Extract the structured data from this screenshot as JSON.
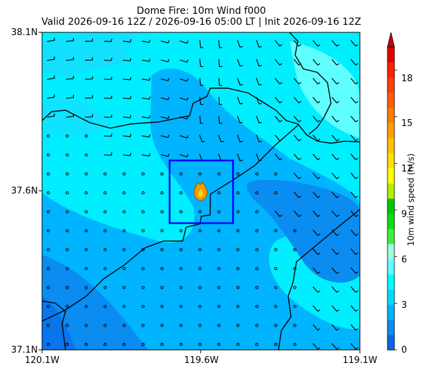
{
  "title": {
    "line1": "Dome Fire: 10m Wind f000",
    "line2": "Valid 2026-09-16 12Z / 2026-09-16 05:00 LT | Init 2026-09-16 12Z"
  },
  "axes": {
    "y_ticks": [
      "38.1N",
      "37.6N",
      "37.1N"
    ],
    "x_ticks": [
      "120.1W",
      "119.6W",
      "119.1W"
    ],
    "lat_range": [
      37.1,
      38.1
    ],
    "lon_range": [
      -120.1,
      -119.1
    ]
  },
  "fire": {
    "name": "Dome Fire",
    "icon": "fire-icon",
    "lat": 37.63,
    "lon": -119.59
  },
  "focus_box": {
    "lat_range": [
      37.5,
      37.7
    ],
    "lon_range": [
      -119.7,
      -119.5
    ],
    "color": "#0000ff"
  },
  "colorbar": {
    "label": "10m wind speed (m/s)",
    "ticks": [
      "0",
      "3",
      "6",
      "9",
      "12",
      "15",
      "18"
    ],
    "range": [
      0,
      19.5
    ],
    "extend": "max",
    "colors": [
      "#0a64e6",
      "#0a8cf0",
      "#00b4ff",
      "#00dcff",
      "#00ffff",
      "#60ffff",
      "#9effdc",
      "#40f040",
      "#10dc10",
      "#00c800",
      "#b0f000",
      "#ffff00",
      "#ffe000",
      "#ffc000",
      "#ffa000",
      "#ff8000",
      "#ff6000",
      "#ff4000",
      "#ff2000",
      "#e00000"
    ]
  },
  "chart_data": {
    "type": "heatmap",
    "title": "Dome Fire: 10m Wind f000",
    "subtitle": "Valid 2026-09-16 12Z / 2026-09-16 05:00 LT | Init 2026-09-16 12Z",
    "xlabel": "",
    "ylabel": "",
    "xlim": [
      "120.1W",
      "119.1W"
    ],
    "ylim": [
      "37.1N",
      "38.1N"
    ],
    "colorbar_label": "10m wind speed (m/s)",
    "colorbar_range": [
      0,
      19.5
    ],
    "speed_bands": [
      {
        "range_ms": [
          0,
          1.5
        ],
        "area": "southwest corner and east-center lobe"
      },
      {
        "range_ms": [
          1.5,
          3
        ],
        "area": "central-west and south regions"
      },
      {
        "range_ms": [
          3,
          4.5
        ],
        "area": "most of the domain"
      },
      {
        "range_ms": [
          4.5,
          6
        ],
        "area": "northeast and northwest patches"
      }
    ],
    "wind_barbs": "calm circles in the southwest half; light northerly-to-westerly barbs in the north and east"
  }
}
